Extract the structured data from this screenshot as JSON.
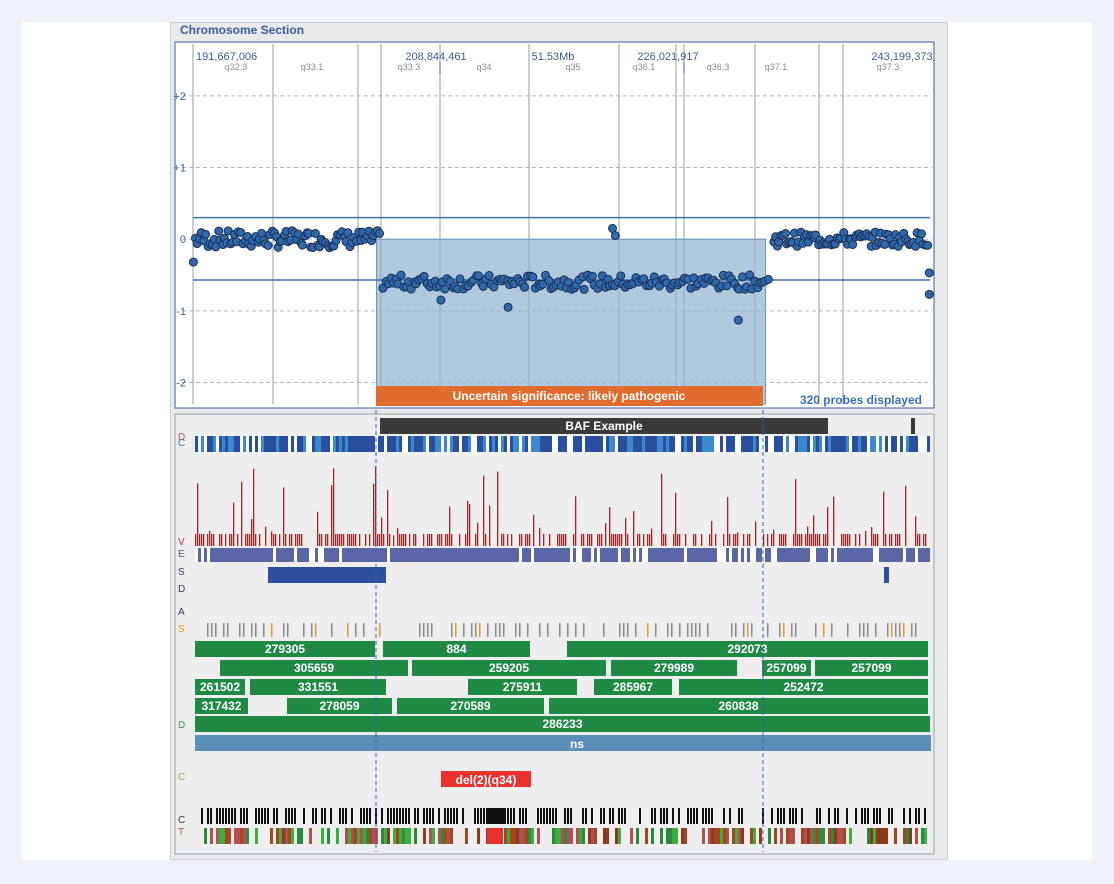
{
  "panel": {
    "title": "Chromosome Section"
  },
  "header_positions": [
    {
      "label": "191,667,006"
    },
    {
      "label": "208,844,461"
    },
    {
      "label": "51.53Mb"
    },
    {
      "label": "226,021,917"
    },
    {
      "label": "243,199,373"
    }
  ],
  "bands": [
    "q32.3",
    "q33.1",
    "q33.3",
    "q34",
    "q35",
    "q36.1",
    "q36.3",
    "q37.1",
    "q37.3"
  ],
  "chart_data": {
    "type": "scatter",
    "title": "",
    "xlabel": "",
    "ylabel": "",
    "ylim": [
      -2.3,
      2.5
    ],
    "xlim": [
      191667006,
      243199373
    ],
    "yticks": [
      "+2",
      "+1",
      "0",
      "-1",
      "-2"
    ],
    "series": [
      {
        "segments": [
          {
            "x_start": 191800000,
            "x_end": 204800000,
            "mean": 0.0,
            "noise": 0.12,
            "n": 90
          },
          {
            "x_start": 204900000,
            "x_end": 232000000,
            "mean": -0.6,
            "noise": 0.1,
            "n": 150
          },
          {
            "x_start": 232200000,
            "x_end": 243100000,
            "mean": 0.0,
            "noise": 0.1,
            "n": 80
          }
        ]
      }
    ],
    "outliers": [
      {
        "x": 191700000,
        "y": -0.32
      },
      {
        "x": 221000000,
        "y": 0.15
      },
      {
        "x": 221200000,
        "y": 0.05
      },
      {
        "x": 229800000,
        "y": -1.13
      },
      {
        "x": 243150000,
        "y": -0.47
      },
      {
        "x": 243150000,
        "y": -0.77
      },
      {
        "x": 213700000,
        "y": -0.95
      },
      {
        "x": 209000000,
        "y": -0.85
      }
    ],
    "lines": [
      0.3,
      -0.57
    ],
    "cnv_region": {
      "x_start": 204500000,
      "x_end": 231700000,
      "y_top": 0.0,
      "y_bottom": -2.3
    }
  },
  "cnv_label": "Uncertain significance: likely pathogenic",
  "probes_label": "320 probes displayed",
  "baf_label": "BAF Example",
  "tracks": {
    "row1": [
      "279305",
      "884",
      "292073"
    ],
    "row2": [
      "305659",
      "259205",
      "279989",
      "257099",
      "257099"
    ],
    "row3": [
      "261502",
      "331551",
      "275911",
      "285967",
      "252472"
    ],
    "row4": [
      "317432",
      "278059",
      "270589",
      "260838"
    ],
    "row5": [
      "286233"
    ],
    "row6": [
      "ns"
    ]
  },
  "deletion_label": "del(2)(q34)",
  "colors": {
    "accent": "#3a5d9c",
    "cnv_fill": "#8fb2cf",
    "cnv_bar": "#e06c2e",
    "green": "#1f8a43",
    "red_del": "#e8322e",
    "navy": "#2d4f9e"
  }
}
